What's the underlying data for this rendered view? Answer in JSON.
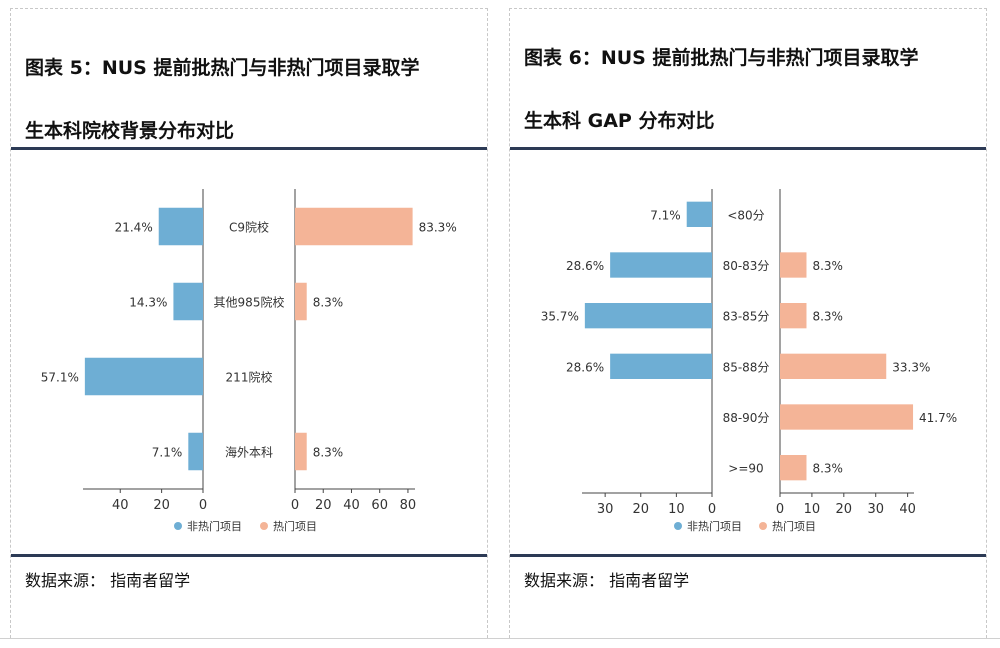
{
  "charts": [
    {
      "title_line1": "图表 5：NUS 提前批热门与非热门项目录取学",
      "title_line2": "生本科院校背景分布对比",
      "source": "数据来源： 指南者留学",
      "legend": [
        "非热门项目",
        "热门项目"
      ]
    },
    {
      "title_line1": "图表 6：NUS 提前批热门与非热门项目录取学",
      "title_line2": "生本科 GAP 分布对比",
      "source": "数据来源： 指南者留学",
      "legend": [
        "非热门项目",
        "热门项目"
      ]
    }
  ],
  "chart_data": [
    {
      "type": "bar",
      "orientation": "horizontal",
      "categories": [
        "C9院校",
        "其他985院校",
        "211院校",
        "海外本科"
      ],
      "series": [
        {
          "name": "非热门项目",
          "values": [
            21.4,
            14.3,
            57.1,
            7.1
          ],
          "labels": [
            "21.4%",
            "14.3%",
            "57.1%",
            "7.1%"
          ]
        },
        {
          "name": "热门项目",
          "values": [
            83.3,
            8.3,
            0,
            8.3
          ],
          "labels": [
            "83.3%",
            "8.3%",
            "",
            "8.3%"
          ]
        }
      ],
      "left_ticks": [
        "40",
        "20",
        "0"
      ],
      "left_tick_values": [
        40,
        20,
        0
      ],
      "left_max": 58,
      "right_ticks": [
        "0",
        "20",
        "40",
        "60",
        "80"
      ],
      "right_tick_values": [
        0,
        20,
        40,
        60,
        80
      ],
      "right_max": 85,
      "colors": {
        "left": "#6eaed4",
        "right": "#f4b497"
      }
    },
    {
      "type": "bar",
      "orientation": "horizontal",
      "categories": [
        "<80分",
        "80-83分",
        "83-85分",
        "85-88分",
        "88-90分",
        ">=90"
      ],
      "series": [
        {
          "name": "非热门项目",
          "values": [
            7.1,
            28.6,
            35.7,
            28.6,
            0,
            0
          ],
          "labels": [
            "7.1%",
            "28.6%",
            "35.7%",
            "28.6%",
            "",
            ""
          ]
        },
        {
          "name": "热门项目",
          "values": [
            0,
            8.3,
            8.3,
            33.3,
            41.7,
            8.3
          ],
          "labels": [
            "",
            "8.3%",
            "8.3%",
            "33.3%",
            "41.7%",
            "8.3%"
          ]
        }
      ],
      "left_ticks": [
        "30",
        "20",
        "10",
        "0"
      ],
      "left_tick_values": [
        30,
        20,
        10,
        0
      ],
      "left_max": 36.5,
      "right_ticks": [
        "0",
        "10",
        "20",
        "30",
        "40"
      ],
      "right_tick_values": [
        0,
        10,
        20,
        30,
        40
      ],
      "right_max": 42,
      "colors": {
        "left": "#6eaed4",
        "right": "#f4b497"
      }
    }
  ]
}
